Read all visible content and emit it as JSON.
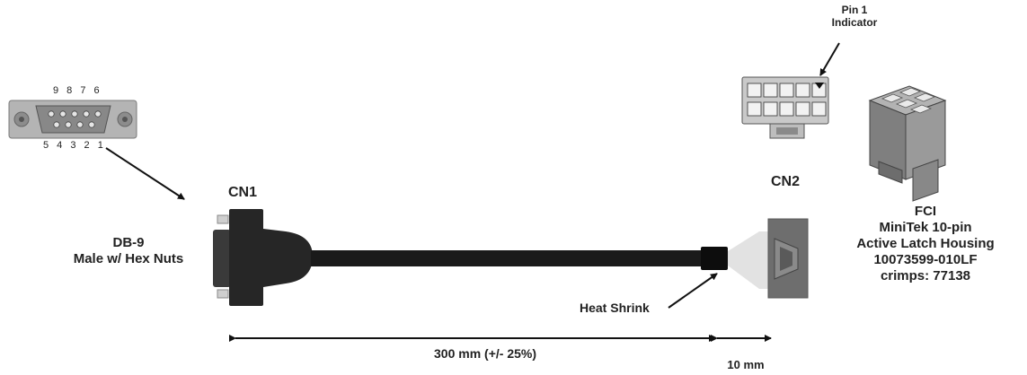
{
  "db9_pins_top": "9 8 7 6",
  "db9_pins_bottom": "5 4 3 2 1",
  "cn1_label": "CN1",
  "cn2_label": "CN2",
  "db9_desc": [
    "DB-9",
    "Male w/ Hex Nuts"
  ],
  "pin1_label": [
    "Pin 1",
    "Indicator"
  ],
  "fci_desc": [
    "FCI",
    "MiniTek 10-pin",
    "Active Latch Housing",
    "10073599-010LF",
    "crimps: 77138"
  ],
  "heat_shrink_label": "Heat Shrink",
  "cable_length_label": "300 mm (+/- 25%)",
  "shrink_length_label": "10 mm",
  "colors": {
    "cable": "#1a1a1a",
    "connector": "#2b2b2b",
    "housing": "#6e6e6e",
    "db9_shell": "#a7a7a7"
  }
}
